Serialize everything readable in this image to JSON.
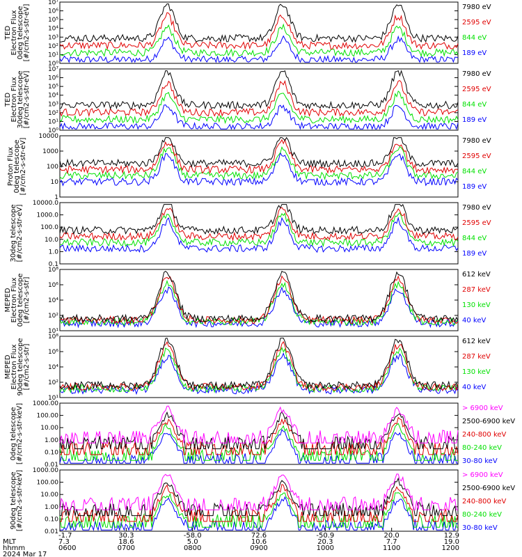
{
  "colors": {
    "black": "#000000",
    "red": "#e00000",
    "green": "#00e000",
    "blue": "#0000ff",
    "magenta": "#ff00ff"
  },
  "chart_data": [
    {
      "type": "line",
      "log_y": true,
      "ylabel_lines": [
        "TED",
        "Electron Flux",
        "0deg telescope",
        "[#/cm2-s-str-eV]"
      ],
      "yticks": [
        "10⁰",
        "10¹",
        "10²",
        "10³",
        "10⁴",
        "10⁵",
        "10⁶",
        "10⁷"
      ],
      "ylim": [
        1,
        10000000
      ],
      "series": [
        {
          "name": "7980 eV",
          "color": "#000000"
        },
        {
          "name": "2595 eV",
          "color": "#e00000"
        },
        {
          "name": "844 eV",
          "color": "#00e000"
        },
        {
          "name": "189 eV",
          "color": "#0000ff"
        }
      ]
    },
    {
      "type": "line",
      "log_y": true,
      "ylabel_lines": [
        "TED",
        "Electron Flux",
        "30deg telescope",
        "[#/cm2-s-str-eV]"
      ],
      "yticks": [
        "10⁰",
        "10¹",
        "10²",
        "10³",
        "10⁴",
        "10⁵",
        "10⁶",
        "10⁷"
      ],
      "ylim": [
        1,
        10000000
      ],
      "series": [
        {
          "name": "7980 eV",
          "color": "#000000"
        },
        {
          "name": "2595 eV",
          "color": "#e00000"
        },
        {
          "name": "844 eV",
          "color": "#00e000"
        },
        {
          "name": "189 eV",
          "color": "#0000ff"
        }
      ]
    },
    {
      "type": "line",
      "log_y": true,
      "ylabel_lines": [
        "Proton Flux",
        "0deg telescope",
        "[#/cm2-s-str-eV]"
      ],
      "yticks": [
        "1",
        "10",
        "100",
        "1000",
        "10000"
      ],
      "ylim": [
        1,
        10000
      ],
      "series": [
        {
          "name": "7980 eV",
          "color": "#000000"
        },
        {
          "name": "2595 eV",
          "color": "#e00000"
        },
        {
          "name": "844 eV",
          "color": "#00e000"
        },
        {
          "name": "189 eV",
          "color": "#0000ff"
        }
      ]
    },
    {
      "type": "line",
      "log_y": true,
      "ylabel_lines": [
        "30deg telescope",
        "[#/cm2-s-str-eV]"
      ],
      "yticks": [
        "0.1",
        "1.0",
        "10.0",
        "100.0",
        "1000.0",
        "10000.0"
      ],
      "ylim": [
        0.1,
        10000
      ],
      "series": [
        {
          "name": "7980 eV",
          "color": "#000000"
        },
        {
          "name": "2595 eV",
          "color": "#e00000"
        },
        {
          "name": "844 eV",
          "color": "#00e000"
        },
        {
          "name": "189 eV",
          "color": "#0000ff"
        }
      ]
    },
    {
      "type": "line",
      "log_y": true,
      "ylabel_lines": [
        "MEPED",
        "Electron Flux",
        "0deg telescope",
        "[#/cm2-s-str]"
      ],
      "yticks": [
        "10¹",
        "10²",
        "10⁴",
        "10⁶",
        "10⁸"
      ],
      "ylim": [
        10,
        100000000
      ],
      "series": [
        {
          "name": "612 keV",
          "color": "#000000"
        },
        {
          "name": "287 keV",
          "color": "#e00000"
        },
        {
          "name": "130 keV",
          "color": "#00e000"
        },
        {
          "name": "40 keV",
          "color": "#0000ff"
        }
      ]
    },
    {
      "type": "line",
      "log_y": true,
      "ylabel_lines": [
        "MEPED",
        "Electron Flux",
        "90deg telescope",
        "[#/cm2-s-str]"
      ],
      "yticks": [
        "10¹",
        "10²",
        "10⁴",
        "10⁶",
        "10⁸"
      ],
      "ylim": [
        10,
        100000000
      ],
      "series": [
        {
          "name": "612 keV",
          "color": "#000000"
        },
        {
          "name": "287 keV",
          "color": "#e00000"
        },
        {
          "name": "130 keV",
          "color": "#00e000"
        },
        {
          "name": "40 keV",
          "color": "#0000ff"
        }
      ]
    },
    {
      "type": "line",
      "log_y": true,
      "ylabel_lines": [
        "0deg telescope",
        "[#/cm2-s-str-keV]"
      ],
      "yticks": [
        "0.01",
        "0.10",
        "1.00",
        "10.00",
        "100.00",
        "1000.00"
      ],
      "ylim": [
        0.01,
        1000
      ],
      "series": [
        {
          "name": "> 6900 keV",
          "color": "#ff00ff"
        },
        {
          "name": "2500-6900 keV",
          "color": "#000000"
        },
        {
          "name": "240-800 keV",
          "color": "#e00000"
        },
        {
          "name": "80-240 keV",
          "color": "#00e000"
        },
        {
          "name": "30-80 keV",
          "color": "#0000ff"
        }
      ]
    },
    {
      "type": "line",
      "log_y": true,
      "ylabel_lines": [
        "90deg telescope",
        "[#/cm2-s-str-keV]"
      ],
      "yticks": [
        "0.01",
        "0.10",
        "1.00",
        "10.00",
        "100.00",
        "1000.00"
      ],
      "ylim": [
        0.01,
        1000
      ],
      "series": [
        {
          "name": "> 6900 keV",
          "color": "#ff00ff"
        },
        {
          "name": "2500-6900 keV",
          "color": "#000000"
        },
        {
          "name": "240-800 keV",
          "color": "#e00000"
        },
        {
          "name": "80-240 keV",
          "color": "#00e000"
        },
        {
          "name": "30-80 keV",
          "color": "#0000ff"
        }
      ]
    }
  ],
  "x_axis": {
    "row_labels": [
      "MLT",
      "hhmm",
      "2024 Mar 17"
    ],
    "ticks": [
      {
        "lat": "-1.7",
        "mlt": "7.3",
        "hhmm": "0600"
      },
      {
        "lat": "30.3",
        "mlt": "18.6",
        "hhmm": "0700"
      },
      {
        "lat": "-58.0",
        "mlt": "5.0",
        "hhmm": "0800"
      },
      {
        "lat": "72.6",
        "mlt": "10.6",
        "hhmm": "0900"
      },
      {
        "lat": "-50.9",
        "mlt": "20.3",
        "hhmm": "1000"
      },
      {
        "lat": "20.0",
        "mlt": "7.7",
        "hhmm": "1100"
      },
      {
        "lat": "12.9",
        "mlt": "19.0",
        "hhmm": "1200"
      }
    ]
  }
}
